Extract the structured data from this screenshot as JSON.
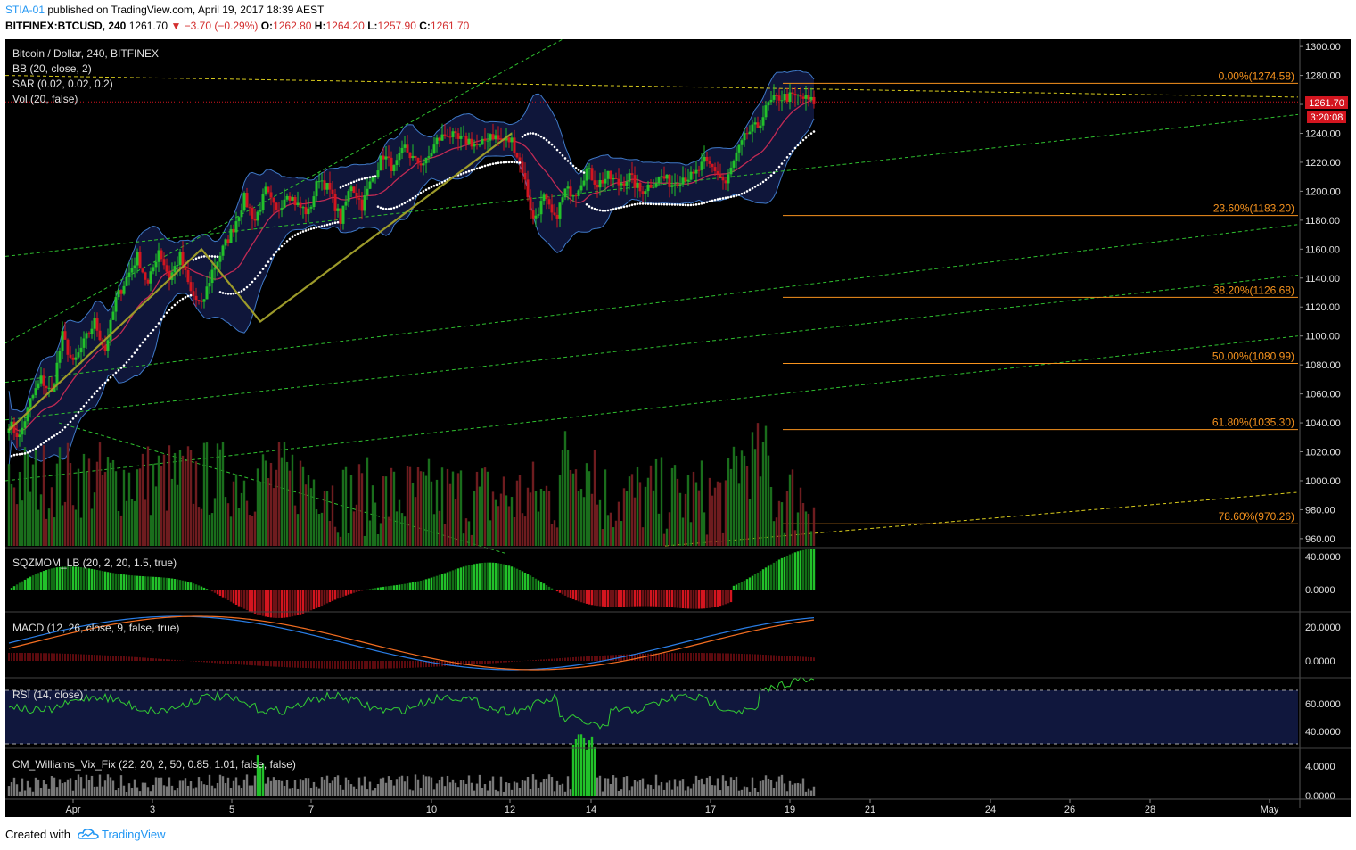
{
  "header": {
    "user": "STIA-01",
    "published": "published on TradingView.com, April 19, 2017 18:39 AEST",
    "symbol": "BITFINEX:BTCUSD, 240",
    "last": "1261.70",
    "change": "▼ −3.70 (−0.29%)",
    "o_label": "O:",
    "o": "1262.80",
    "h_label": "H:",
    "h": "1264.20",
    "l_label": "L:",
    "l": "1257.90",
    "c_label": "C:",
    "c": "1261.70"
  },
  "legend": {
    "title": "Bitcoin / Dollar, 240, BITFINEX",
    "bb": "BB (20, close, 2)",
    "sar": "SAR (0.02, 0.02, 0.2)",
    "vol": "Vol (20, false)"
  },
  "panes": {
    "sqz": "SQZMOM_LB (20, 2, 20, 1.5, true)",
    "macd": "MACD (12, 26, close, 9, false, true)",
    "rsi": "RSI (14, close)",
    "vix": "CM_Williams_Vix_Fix (22, 20, 2, 50, 0.85, 1.01, false, false)"
  },
  "price_tag": {
    "value": "1261.70",
    "timer": "3:20:08"
  },
  "footer": {
    "created_with": "Created with",
    "brand": "TradingView"
  },
  "colors": {
    "background": "#000000",
    "up": "#22c12a",
    "down": "#d3151f",
    "bb_fill": "#10173d",
    "bb_line": "#3f79c7",
    "bb_basis": "#c02a54",
    "fib": "#f7931e",
    "trend_green": "#2fbf2f",
    "trend_yellow": "#d8cb1c",
    "macd": "#2a7ee6",
    "signal": "#f26d21",
    "rsi": "#33cc33"
  },
  "chart_data": {
    "type": "candlestick",
    "title": "Bitcoin / Dollar, 240, BITFINEX",
    "price_axis": {
      "ticks": [
        "1300.00",
        "1280.00",
        "1260.00",
        "1240.00",
        "1220.00",
        "1200.00",
        "1180.00",
        "1160.00",
        "1140.00",
        "1120.00",
        "1100.00",
        "1080.00",
        "1060.00",
        "1040.00",
        "1020.00",
        "1000.00",
        "980.00",
        "960.00"
      ],
      "range": [
        955,
        1305
      ]
    },
    "x_axis": {
      "ticks": [
        "Apr",
        "3",
        "5",
        "7",
        "10",
        "12",
        "14",
        "17",
        "19",
        "21",
        "24",
        "26",
        "28",
        "May"
      ]
    },
    "fib_levels": [
      {
        "label": "0.00%(1274.58)",
        "value": 1274.58
      },
      {
        "label": "23.60%(1183.20)",
        "value": 1183.2
      },
      {
        "label": "38.20%(1126.68)",
        "value": 1126.68
      },
      {
        "label": "50.00%(1080.99)",
        "value": 1080.99
      },
      {
        "label": "61.80%(1035.30)",
        "value": 1035.3
      },
      {
        "label": "78.60%(970.26)",
        "value": 970.26
      }
    ],
    "close_path": [
      [
        0,
        1040
      ],
      [
        4,
        1030
      ],
      [
        8,
        1055
      ],
      [
        12,
        1070
      ],
      [
        16,
        1060
      ],
      [
        20,
        1100
      ],
      [
        24,
        1080
      ],
      [
        28,
        1095
      ],
      [
        32,
        1110
      ],
      [
        36,
        1090
      ],
      [
        40,
        1125
      ],
      [
        44,
        1140
      ],
      [
        48,
        1155
      ],
      [
        52,
        1135
      ],
      [
        56,
        1160
      ],
      [
        60,
        1140
      ],
      [
        64,
        1155
      ],
      [
        68,
        1130
      ],
      [
        72,
        1120
      ],
      [
        76,
        1145
      ],
      [
        80,
        1160
      ],
      [
        84,
        1175
      ],
      [
        88,
        1195
      ],
      [
        92,
        1180
      ],
      [
        96,
        1200
      ],
      [
        100,
        1185
      ],
      [
        104,
        1200
      ],
      [
        108,
        1190
      ],
      [
        112,
        1185
      ],
      [
        116,
        1210
      ],
      [
        120,
        1200
      ],
      [
        124,
        1180
      ],
      [
        128,
        1205
      ],
      [
        132,
        1190
      ],
      [
        136,
        1210
      ],
      [
        140,
        1225
      ],
      [
        144,
        1215
      ],
      [
        148,
        1230
      ],
      [
        152,
        1220
      ],
      [
        156,
        1220
      ],
      [
        160,
        1235
      ],
      [
        164,
        1240
      ],
      [
        168,
        1235
      ],
      [
        172,
        1235
      ],
      [
        176,
        1230
      ],
      [
        180,
        1240
      ],
      [
        184,
        1235
      ],
      [
        188,
        1235
      ],
      [
        192,
        1215
      ],
      [
        196,
        1180
      ],
      [
        200,
        1195
      ],
      [
        204,
        1180
      ],
      [
        208,
        1200
      ],
      [
        212,
        1200
      ],
      [
        216,
        1215
      ],
      [
        220,
        1205
      ],
      [
        224,
        1210
      ],
      [
        228,
        1205
      ],
      [
        232,
        1210
      ],
      [
        236,
        1200
      ],
      [
        240,
        1205
      ],
      [
        244,
        1210
      ],
      [
        248,
        1205
      ],
      [
        252,
        1210
      ],
      [
        256,
        1210
      ],
      [
        260,
        1220
      ],
      [
        264,
        1215
      ],
      [
        268,
        1205
      ],
      [
        272,
        1225
      ],
      [
        276,
        1240
      ],
      [
        280,
        1245
      ],
      [
        284,
        1260
      ],
      [
        288,
        1265
      ],
      [
        292,
        1265
      ],
      [
        296,
        1265
      ],
      [
        300,
        1262
      ]
    ],
    "sqz_axis": {
      "ticks": [
        "40.0000",
        "0.0000"
      ]
    },
    "macd_axis": {
      "ticks": [
        "20.0000",
        "0.0000"
      ]
    },
    "rsi_axis": {
      "ticks": [
        "60.0000",
        "40.0000"
      ]
    },
    "vix_axis": {
      "ticks": [
        "4.0000",
        "0.0000"
      ]
    }
  }
}
